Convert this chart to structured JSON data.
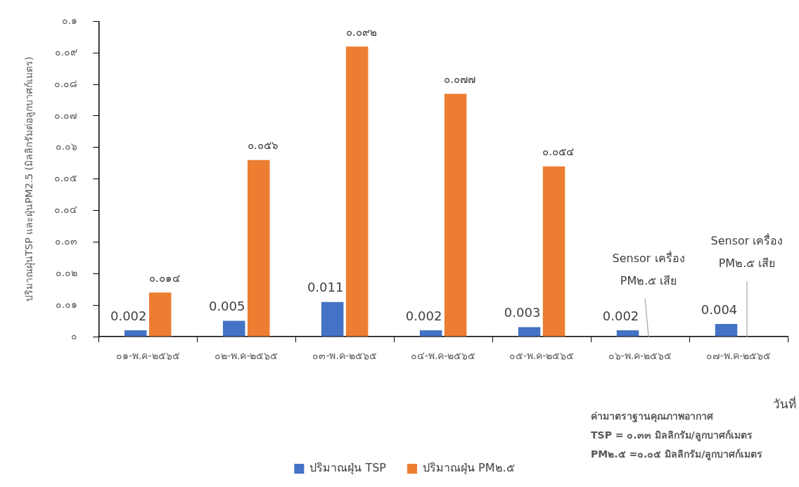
{
  "chart_data": {
    "type": "bar",
    "ylabel": "ปริมาณฝุ่นTSP และฝุ่นPM2.5 (มิลลิกรัมต่อลูกบาศก์เมตร)",
    "xlabel": "วันที่",
    "categories": [
      "๐๑-พ.ค-๒๕๖๕",
      "๐๒-พ.ค-๒๕๖๕",
      "๐๓-พ.ค-๒๕๖๕",
      "๐๔-พ.ค-๒๕๖๕",
      "๐๕-พ.ค-๒๕๖๕",
      "๐๖-พ.ค-๒๕๖๕",
      "๐๗-พ.ค-๒๕๖๕"
    ],
    "series": [
      {
        "name": "ปริมาณฝุ่น TSP",
        "color": "#4472c4",
        "values": [
          0.002,
          0.005,
          0.011,
          0.002,
          0.003,
          0.002,
          0.004
        ],
        "value_labels": [
          "0.002",
          "0.005",
          "0.011",
          "0.002",
          "0.003",
          "0.002",
          "0.004"
        ]
      },
      {
        "name": "ปริมาณฝุ่น PM๒.๕",
        "color": "#ed7d31",
        "values": [
          0.014,
          0.056,
          0.092,
          0.077,
          0.054,
          null,
          null
        ],
        "value_labels": [
          "๐.๐๑๔",
          "๐.๐๕๖",
          "๐.๐๙๒",
          "๐.๐๗๗",
          "๐.๐๕๔",
          null,
          null
        ]
      }
    ],
    "ylim": [
      0,
      0.1
    ],
    "yticks": [
      {
        "value": 0,
        "label": "๐"
      },
      {
        "value": 0.01,
        "label": "๐.๐๑"
      },
      {
        "value": 0.02,
        "label": "๐.๐๒"
      },
      {
        "value": 0.03,
        "label": "๐.๐๓"
      },
      {
        "value": 0.04,
        "label": "๐.๐๔"
      },
      {
        "value": 0.05,
        "label": "๐.๐๕"
      },
      {
        "value": 0.06,
        "label": "๐.๐๖"
      },
      {
        "value": 0.07,
        "label": "๐.๐๗"
      },
      {
        "value": 0.08,
        "label": "๐.๐๘"
      },
      {
        "value": 0.09,
        "label": "๐.๐๙"
      },
      {
        "value": 0.1,
        "label": "๐.๑"
      }
    ],
    "grid": false,
    "legend": "bottom",
    "annotations": [
      "Sensor เครื่อง\nPM๒.๕ เสีย",
      "Sensor เครื่อง\nPM๒.๕ เสีย",
      "ค่ามาตราฐานคุณภาพอากาศ\nTSP = ๐.๓๓ มิลลิกรัม/ลูกบาศก์เมตร\nPM๒.๕ =๐.๐๕ มิลลิกรัม/ลูกบาศก์เมตร"
    ]
  }
}
